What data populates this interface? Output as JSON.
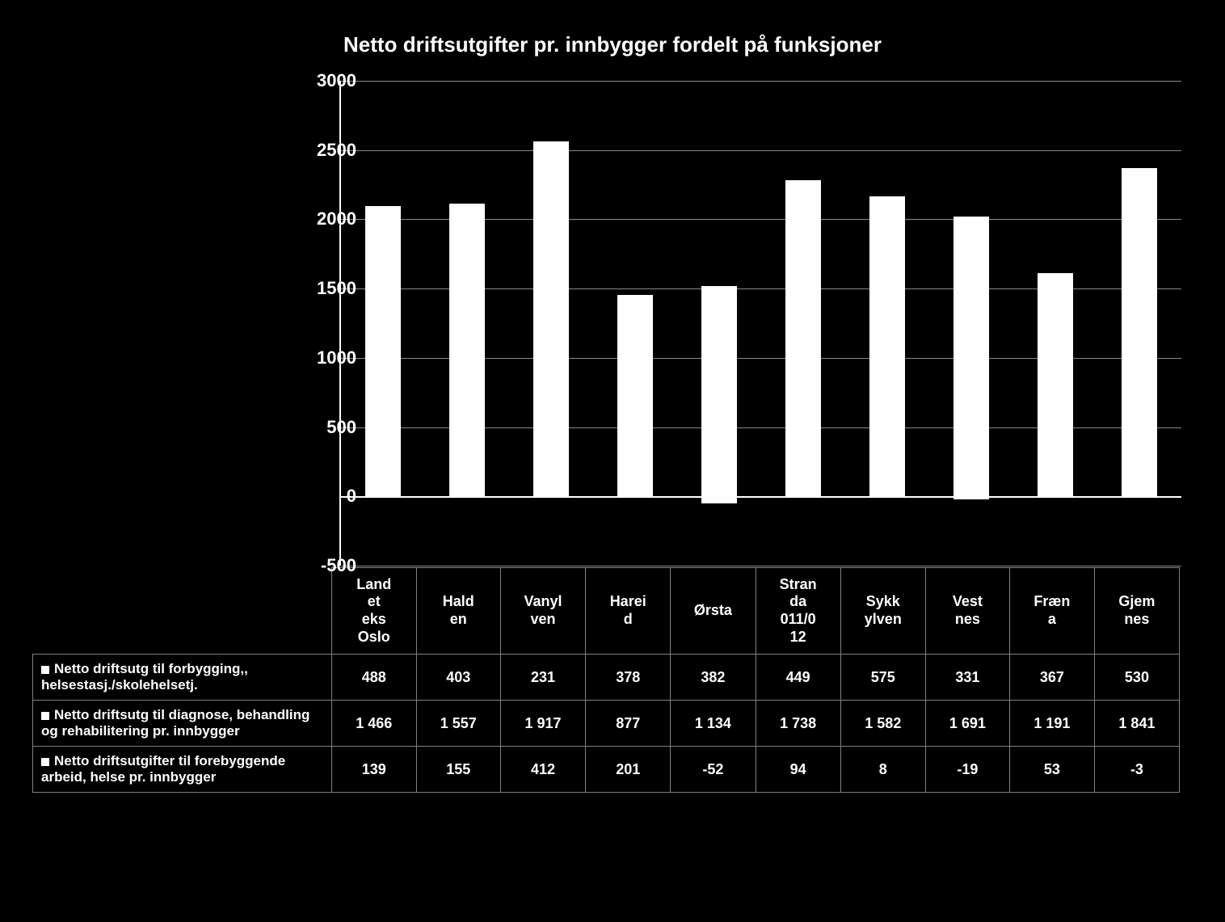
{
  "chart": {
    "type": "bar",
    "title": "Netto driftsutgifter pr. innbygger fordelt på funksjoner",
    "title_fontsize": 26,
    "background_color": "#000000",
    "bar_color": "#ffffff",
    "grid_color": "#888888",
    "axis_color": "#ffffff",
    "text_color": "#ffffff",
    "ylim": [
      -500,
      3000
    ],
    "ytick_step": 500,
    "yticks": [
      "-500",
      "0",
      "500",
      "1000",
      "1500",
      "2000",
      "2500",
      "3000"
    ],
    "categories": [
      "Land\net\neks\nOslo",
      "Hald\nen",
      "Vanyl\nven",
      "Harei\nd",
      "Ørsta",
      "Stran\nda\n011/0\n12",
      "Sykk\nylven",
      "Vest\nnes",
      "Fræn\na",
      "Gjem\nnes"
    ],
    "bar_totals": [
      2093,
      2115,
      2560,
      1456,
      1516,
      2281,
      2165,
      2022,
      1611,
      2371
    ],
    "negative_parts": [
      0,
      0,
      0,
      0,
      -52,
      0,
      0,
      -19,
      0,
      -3
    ],
    "series": [
      {
        "label": "Netto driftsutg til forbygging,, helsestasj./skolehelsetj.",
        "values": [
          "488",
          "403",
          "231",
          "378",
          "382",
          "449",
          "575",
          "331",
          "367",
          "530"
        ]
      },
      {
        "label": "Netto driftsutg til diagnose, behandling og rehabilitering pr. innbygger",
        "values": [
          "1 466",
          "1 557",
          "1 917",
          "877",
          "1 134",
          "1 738",
          "1 582",
          "1 691",
          "1 191",
          "1 841"
        ]
      },
      {
        "label": "Netto driftsutgifter til forebyggende arbeid, helse pr. innbygger",
        "values": [
          "139",
          "155",
          "412",
          "201",
          "-52",
          "94",
          "8",
          "-19",
          "53",
          "-3"
        ]
      }
    ]
  }
}
